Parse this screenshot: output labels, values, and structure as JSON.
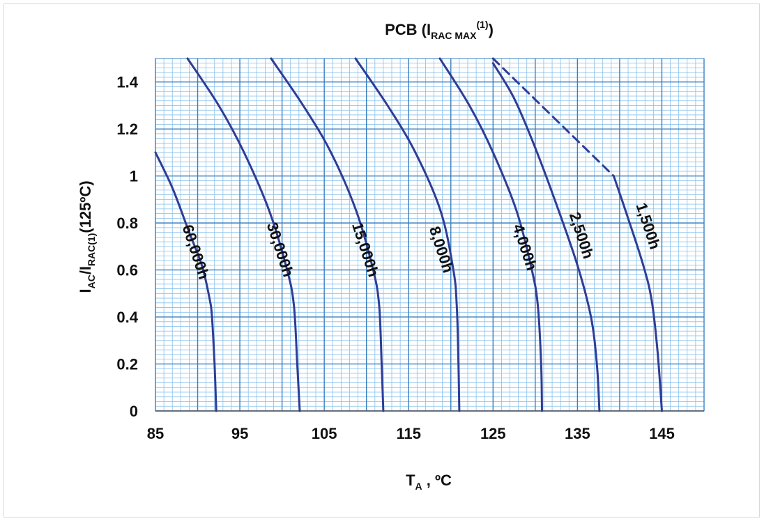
{
  "chart_data": {
    "type": "line",
    "title_main": "PCB (I",
    "title_sub": "RAC MAX",
    "title_sup": "(1)",
    "title_end": ")",
    "xlabel_main": "T",
    "xlabel_sub": "A",
    "xlabel_end": " , ºC",
    "ylabel_main": "I",
    "ylabel_sub1": "AC",
    "ylabel_mid": "/I",
    "ylabel_sub2": "RAC(1)",
    "ylabel_end": "(125ºC)",
    "xlim": [
      85,
      150
    ],
    "ylim": [
      0,
      1.5
    ],
    "x_ticks": [
      85,
      95,
      105,
      115,
      125,
      135,
      145
    ],
    "x_tick_labels": [
      "85",
      "95",
      "105",
      "115",
      "125",
      "135",
      "145"
    ],
    "y_ticks": [
      0,
      0.2,
      0.4,
      0.6,
      0.8,
      1,
      1.2,
      1.4
    ],
    "y_tick_labels": [
      "0",
      "0.2",
      "0.4",
      "0.6",
      "0.8",
      "1",
      "1.2",
      "1.4"
    ],
    "grid": true,
    "series": [
      {
        "name": "60,000h",
        "x": [
          85.0,
          87.0,
          89.0,
          90.5,
          91.4,
          91.7,
          92.0,
          92.2
        ],
        "y": [
          1.1,
          0.95,
          0.76,
          0.62,
          0.48,
          0.4,
          0.2,
          0.0
        ],
        "label_x": 89.2,
        "label_y": 0.67
      },
      {
        "name": "30,000h",
        "x": [
          88.8,
          92.5,
          95.5,
          98.5,
          100.6,
          101.4,
          101.8,
          102.1
        ],
        "y": [
          1.5,
          1.3,
          1.1,
          0.85,
          0.6,
          0.45,
          0.2,
          0.0
        ],
        "label_x": 99.2,
        "label_y": 0.68
      },
      {
        "name": "15,000h",
        "x": [
          98.7,
          102.5,
          105.8,
          108.8,
          110.8,
          111.5,
          111.8,
          112.0
        ],
        "y": [
          1.5,
          1.3,
          1.1,
          0.85,
          0.6,
          0.45,
          0.2,
          0.0
        ],
        "label_x": 109.3,
        "label_y": 0.68
      },
      {
        "name": "8,000h",
        "x": [
          108.7,
          112.5,
          115.8,
          118.8,
          120.3,
          120.7,
          120.9,
          121.0
        ],
        "y": [
          1.5,
          1.3,
          1.1,
          0.85,
          0.6,
          0.45,
          0.2,
          0.0
        ],
        "label_x": 118.3,
        "label_y": 0.68
      },
      {
        "name": "4,000h",
        "x": [
          118.7,
          122.2,
          125.0,
          127.8,
          129.6,
          130.3,
          130.7,
          130.8
        ],
        "y": [
          1.5,
          1.3,
          1.1,
          0.85,
          0.6,
          0.45,
          0.2,
          0.0
        ],
        "label_x": 128.2,
        "label_y": 0.69
      },
      {
        "name": "2,500h",
        "x": [
          125.0,
          127.5,
          130.0,
          132.5,
          135.0,
          136.6,
          137.3,
          137.6
        ],
        "y": [
          1.48,
          1.33,
          1.12,
          0.88,
          0.62,
          0.4,
          0.2,
          0.0
        ],
        "label_x": 134.9,
        "label_y": 0.74
      },
      {
        "name": "1,500h",
        "x": [
          139.3,
          141.0,
          142.8,
          143.8,
          144.5,
          145.0
        ],
        "y": [
          1.0,
          0.82,
          0.62,
          0.47,
          0.25,
          0.0
        ],
        "label_x": 142.8,
        "label_y": 0.78
      },
      {
        "name": "dashed",
        "style": "dashed",
        "x": [
          125.0,
          139.3
        ],
        "y": [
          1.5,
          1.0
        ]
      }
    ],
    "colors": {
      "line": "#2e3d96",
      "grid_major": "#3a7fc1",
      "grid_minor": "#86c0eb",
      "axis": "#555555"
    }
  }
}
